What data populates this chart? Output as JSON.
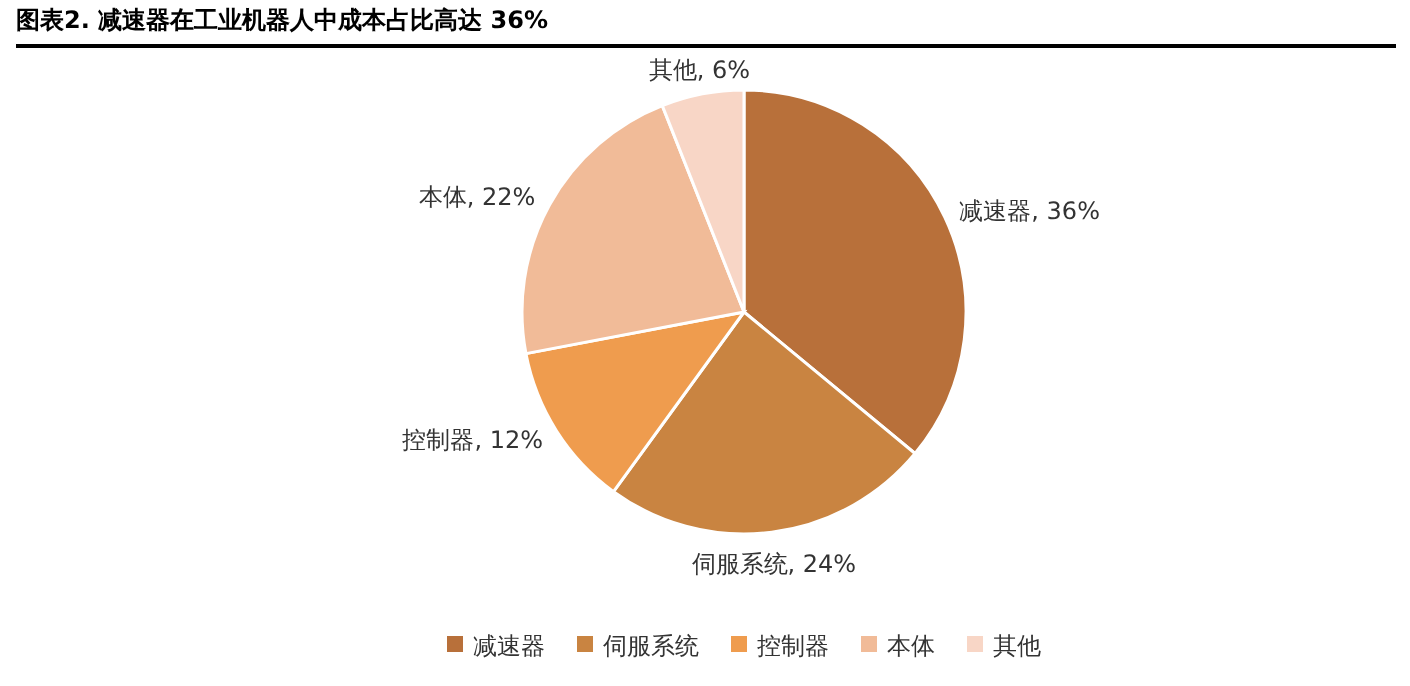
{
  "chart_data": {
    "type": "pie",
    "title": "图表2. 减速器在工业机器人中成本占比高达 36%",
    "categories": [
      "减速器",
      "伺服系统",
      "控制器",
      "本体",
      "其他"
    ],
    "values": [
      36,
      24,
      12,
      22,
      6
    ],
    "colors": [
      "#b8703a",
      "#c98441",
      "#ef9c4e",
      "#f1bb98",
      "#f8d6c6"
    ],
    "value_labels": [
      "减速器, 36%",
      "伺服系统, 24%",
      "控制器, 12%",
      "本体, 22%",
      "其他, 6%"
    ],
    "legend": "bottom"
  }
}
